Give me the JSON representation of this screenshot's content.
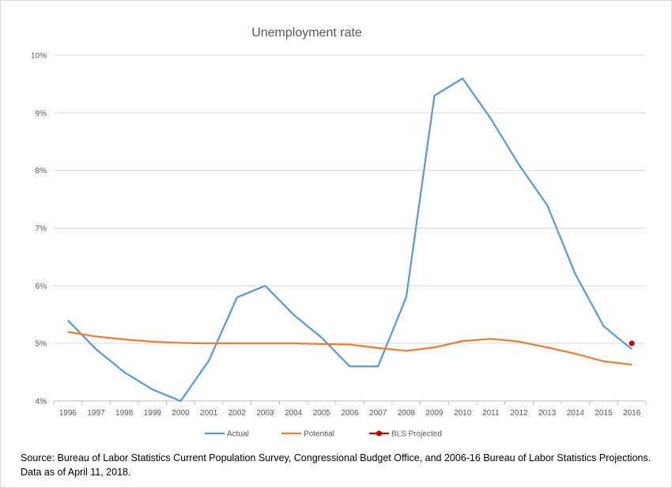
{
  "chart_data": {
    "type": "line",
    "title": "Unemployment rate",
    "xlabel": "",
    "ylabel": "",
    "x": [
      "1996",
      "1997",
      "1998",
      "1999",
      "2000",
      "2001",
      "2002",
      "2003",
      "2004",
      "2005",
      "2006",
      "2007",
      "2008",
      "2009",
      "2010",
      "2011",
      "2012",
      "2013",
      "2014",
      "2015",
      "2016"
    ],
    "ylim": [
      4,
      10
    ],
    "yticks": [
      4,
      5,
      6,
      7,
      8,
      9,
      10
    ],
    "ytick_labels": [
      "4%",
      "5%",
      "6%",
      "7%",
      "8%",
      "9%",
      "10%"
    ],
    "grid": true,
    "legend_position": "bottom",
    "series": [
      {
        "name": "Actual",
        "color": "#5b9bd5",
        "marker": "none",
        "values": [
          5.4,
          4.9,
          4.5,
          4.2,
          4.0,
          4.7,
          5.8,
          6.0,
          5.5,
          5.1,
          4.6,
          4.6,
          5.8,
          9.3,
          9.6,
          8.9,
          8.1,
          7.4,
          6.2,
          5.3,
          4.9
        ]
      },
      {
        "name": "Potential",
        "color": "#ed7d31",
        "marker": "none",
        "values": [
          5.2,
          5.12,
          5.07,
          5.03,
          5.01,
          5.0,
          5.0,
          5.0,
          5.0,
          4.99,
          4.98,
          4.92,
          4.87,
          4.93,
          5.04,
          5.08,
          5.03,
          4.93,
          4.82,
          4.69,
          4.63
        ]
      },
      {
        "name": "BLS Projected",
        "color": "#c00000",
        "marker": "circle",
        "values": [
          null,
          null,
          null,
          null,
          null,
          null,
          null,
          null,
          null,
          null,
          null,
          null,
          null,
          null,
          null,
          null,
          null,
          null,
          null,
          null,
          5.0
        ]
      }
    ]
  },
  "source_note": {
    "line1": "Source: Bureau of Labor Statistics Current Population Survey, Congressional Budget Office, and 2006-16 Bureau of Labor Statistics Projections.",
    "line2": "Data as of April 11, 2018."
  },
  "colors": {
    "grid": "#d9d9d9",
    "axis": "#bfbfbf",
    "text": "#595959"
  }
}
